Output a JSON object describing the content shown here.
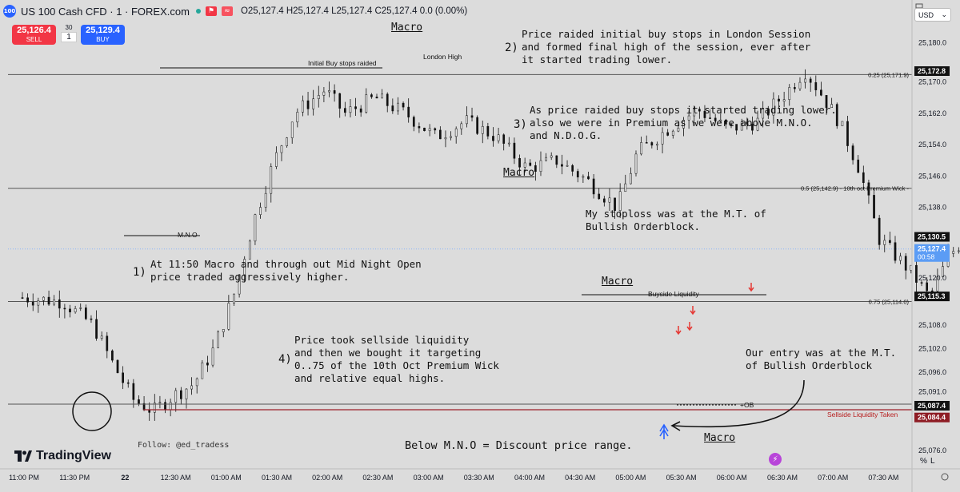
{
  "header": {
    "symbol": "US 100 Cash CFD · 1 · FOREX.com",
    "logo_text": "100",
    "ohlc": "O25,127.4 H25,127.4 L25,127.4 C25,127.4 0.0 (0.00%)",
    "currency": "USD"
  },
  "trade": {
    "sell_price": "25,126.4",
    "sell_label": "SELL",
    "buy_price": "25,129.4",
    "buy_label": "BUY",
    "spread_top": "30",
    "spread_value": "1"
  },
  "branding": {
    "logo_text": "TradingView",
    "follow": "Follow: @ed_tradess"
  },
  "annotations": {
    "n1": "1)",
    "t1": "At 11:50 Macro and through out Mid Night Open\nprice traded aggressively higher.",
    "n2": "2)",
    "t2": "Price raided initial buy stops in London Session\nand formed final high of the session, ever after\nit started trading lower.",
    "n3": "3)",
    "t3": "As price raided buy stops it started trading lower.\nalso we were in Premium as we were above M.N.O.\nand N.D.O.G.",
    "n4": "4)",
    "t4": "Price took sellside liquidity\nand then we bought it targeting\n0..75 of the 10th Oct Premium Wick\nand relative equal highs.",
    "stoploss": "My stoploss was at the M.T. of\nBullish Orderblock.",
    "entry": "Our entry was at the M.T.\nof Bullish Orderblock",
    "discount": "Below M.N.O = Discount price range.",
    "initial_buy_stops": "Initial Buy stops raided",
    "london_high": "London High",
    "mno": "M.N.O",
    "buyside": "Buyside Liquidity",
    "sellside": "Sellside Liquidity Taken",
    "ob": "+OB",
    "macro1": "Macro",
    "macro2": "Macro",
    "macro3": "Macro",
    "macro4": "Macro"
  },
  "chart_data": {
    "type": "candlestick",
    "x_ticks": [
      "11:00 PM",
      "11:30 PM",
      "22",
      "12:30 AM",
      "01:00 AM",
      "01:30 AM",
      "02:00 AM",
      "02:30 AM",
      "03:00 AM",
      "03:30 AM",
      "04:00 AM",
      "04:30 AM",
      "05:00 AM",
      "05:30 AM",
      "06:00 AM",
      "06:30 AM",
      "07:00 AM",
      "07:30 AM"
    ],
    "y_ticks": [
      "25,180.0",
      "25,170.0",
      "25,162.0",
      "25,154.0",
      "25,146.0",
      "25,138.0",
      "25,130.5",
      "25,120.0",
      "25,108.0",
      "25,102.0",
      "25,096.0",
      "25,091.0",
      "25,076.0"
    ],
    "ylim": [
      25073,
      25187
    ],
    "fib_levels": [
      {
        "price": 25171.9,
        "label": "0.25 (25,171.9)"
      },
      {
        "price": 25142.9,
        "label": "0.5 (25,142.9) · 10th oct Premium Wick -"
      },
      {
        "price": 25114.0,
        "label": "0.75 (25,114.0)"
      }
    ],
    "price_labels": [
      {
        "price": 25172.8,
        "text": "25,172.8"
      },
      {
        "price": 25130.5,
        "text": "25,130.5"
      },
      {
        "price": 25127.4,
        "text": "25,127.4",
        "sub": "00:58"
      },
      {
        "price": 25115.3,
        "text": "25,115.3"
      },
      {
        "price": 25087.4,
        "text": "25,087.4"
      },
      {
        "price": 25084.4,
        "text": "25,084.4"
      }
    ],
    "last_price": 25127.4,
    "path": [
      [
        23.0,
        25115
      ],
      [
        23.2,
        25114
      ],
      [
        23.35,
        25108
      ],
      [
        23.45,
        25098
      ],
      [
        23.55,
        25089
      ],
      [
        23.65,
        25086
      ],
      [
        23.75,
        25090
      ],
      [
        23.85,
        25093
      ],
      [
        23.95,
        25102
      ],
      [
        24.05,
        25116
      ],
      [
        24.15,
        25135
      ],
      [
        24.25,
        25150
      ],
      [
        24.35,
        25162
      ],
      [
        24.5,
        25168
      ],
      [
        24.6,
        25162
      ],
      [
        24.75,
        25166
      ],
      [
        24.9,
        25162
      ],
      [
        25.05,
        25156
      ],
      [
        25.2,
        25160
      ],
      [
        25.35,
        25156
      ],
      [
        25.5,
        25148
      ],
      [
        25.65,
        25150
      ],
      [
        25.8,
        25145
      ],
      [
        25.95,
        25138
      ],
      [
        26.05,
        25152
      ],
      [
        26.2,
        25158
      ],
      [
        26.35,
        25163
      ],
      [
        26.5,
        25158
      ],
      [
        26.65,
        25160
      ],
      [
        26.8,
        25168
      ],
      [
        26.88,
        25173
      ],
      [
        26.95,
        25168
      ],
      [
        27.05,
        25160
      ],
      [
        27.15,
        25148
      ],
      [
        27.25,
        25130
      ],
      [
        27.4,
        25122
      ],
      [
        27.5,
        25115
      ],
      [
        27.6,
        25126
      ],
      [
        27.75,
        25134
      ],
      [
        27.9,
        25140
      ],
      [
        28.0,
        25143
      ],
      [
        28.1,
        25136
      ],
      [
        28.25,
        25138
      ],
      [
        28.4,
        25134
      ],
      [
        28.5,
        25132
      ],
      [
        28.6,
        25120
      ],
      [
        28.7,
        25112
      ],
      [
        28.8,
        25104
      ],
      [
        28.9,
        25103
      ],
      [
        29.0,
        25100
      ],
      [
        29.15,
        25104
      ],
      [
        29.3,
        25108
      ],
      [
        29.45,
        25112
      ],
      [
        29.55,
        25108
      ],
      [
        29.65,
        25104
      ],
      [
        29.75,
        25098
      ],
      [
        29.85,
        25092
      ],
      [
        29.95,
        25088
      ],
      [
        30.05,
        25083
      ],
      [
        30.1,
        25090
      ],
      [
        30.2,
        25095
      ],
      [
        30.3,
        25100
      ],
      [
        30.4,
        25105
      ],
      [
        30.45,
        25108
      ],
      [
        30.5,
        25103
      ],
      [
        30.55,
        25096
      ],
      [
        30.65,
        25089
      ],
      [
        30.75,
        25096
      ],
      [
        30.85,
        25104
      ],
      [
        30.95,
        25110
      ],
      [
        31.05,
        25112
      ],
      [
        31.15,
        25111
      ],
      [
        31.25,
        25113
      ],
      [
        31.3,
        25122
      ],
      [
        31.37,
        25129
      ]
    ]
  }
}
